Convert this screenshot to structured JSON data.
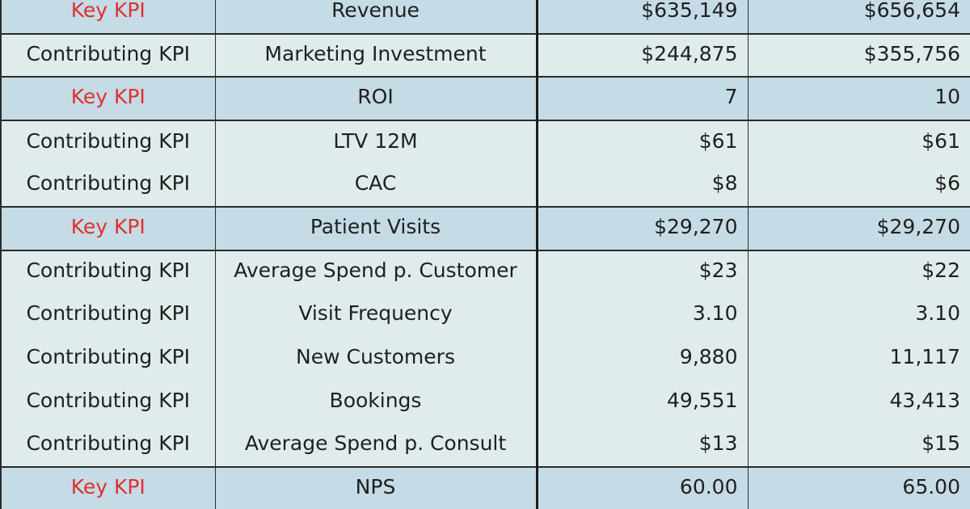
{
  "table": {
    "rows": [
      {
        "type": "Key KPI",
        "metric": "Revenue",
        "value_1": "$635,149",
        "value_2": "$656,654",
        "style": "key"
      },
      {
        "type": "Contributing KPI",
        "metric": "Marketing Investment",
        "value_1": "$244,875",
        "value_2": "$355,756",
        "style": "contrib-end"
      },
      {
        "type": "Key KPI",
        "metric": "ROI",
        "value_1": "7",
        "value_2": "10",
        "style": "key"
      },
      {
        "type": "Contributing KPI",
        "metric": "LTV 12M",
        "value_1": "$61",
        "value_2": "$61",
        "style": "contrib"
      },
      {
        "type": "Contributing KPI",
        "metric": "CAC",
        "value_1": "$8",
        "value_2": "$6",
        "style": "contrib-end"
      },
      {
        "type": "Key KPI",
        "metric": "Patient Visits",
        "value_1": "$29,270",
        "value_2": "$29,270",
        "style": "key"
      },
      {
        "type": "Contributing KPI",
        "metric": "Average Spend p. Customer",
        "value_1": "$23",
        "value_2": "$22",
        "style": "contrib"
      },
      {
        "type": "Contributing KPI",
        "metric": "Visit Frequency",
        "value_1": "3.10",
        "value_2": "3.10",
        "style": "contrib"
      },
      {
        "type": "Contributing KPI",
        "metric": "New Customers",
        "value_1": "9,880",
        "value_2": "11,117",
        "style": "contrib"
      },
      {
        "type": "Contributing KPI",
        "metric": "Bookings",
        "value_1": "49,551",
        "value_2": "43,413",
        "style": "contrib"
      },
      {
        "type": "Contributing KPI",
        "metric": "Average Spend p. Consult",
        "value_1": "$13",
        "value_2": "$15",
        "style": "contrib-end"
      },
      {
        "type": "Key KPI",
        "metric": "NPS",
        "value_1": "60.00",
        "value_2": "65.00",
        "style": "key"
      }
    ]
  },
  "colors": {
    "key_row_bg": "#c5dbe5",
    "contributing_row_bg": "#e0ecec",
    "key_label_text": "#e03030",
    "grid_line": "#2a2a2a"
  }
}
